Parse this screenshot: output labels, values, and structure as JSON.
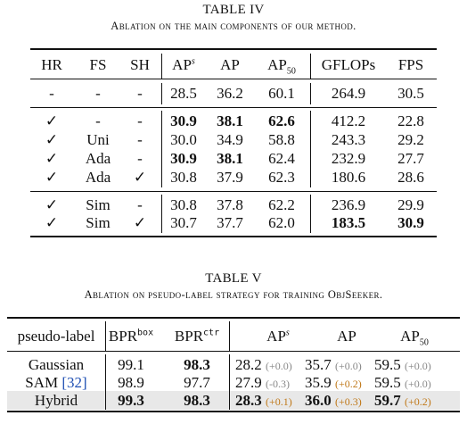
{
  "table4": {
    "label": "TABLE IV",
    "caption": "Ablation on the main components of our method.",
    "headers": {
      "hr": "HR",
      "fs": "FS",
      "sh": "SH",
      "aps": "AP",
      "aps_sup": "s",
      "ap": "AP",
      "ap50": "AP",
      "ap50_sub": "50",
      "gflops": "GFLOPs",
      "fps": "FPS"
    },
    "rows": [
      {
        "hr": "-",
        "fs": "-",
        "sh": "-",
        "aps": "28.5",
        "ap": "36.2",
        "ap50": "60.1",
        "gflops": "264.9",
        "fps": "30.5"
      },
      {
        "hr": "✓",
        "fs": "-",
        "sh": "-",
        "aps": "30.9",
        "ap": "38.1",
        "ap50": "62.6",
        "gflops": "412.2",
        "fps": "22.8"
      },
      {
        "hr": "✓",
        "fs": "Uni",
        "sh": "-",
        "aps": "30.0",
        "ap": "34.9",
        "ap50": "58.8",
        "gflops": "243.3",
        "fps": "29.2"
      },
      {
        "hr": "✓",
        "fs": "Ada",
        "sh": "-",
        "aps": "30.9",
        "ap": "38.1",
        "ap50": "62.4",
        "gflops": "232.9",
        "fps": "27.7"
      },
      {
        "hr": "✓",
        "fs": "Ada",
        "sh": "✓",
        "aps": "30.8",
        "ap": "37.9",
        "ap50": "62.3",
        "gflops": "180.6",
        "fps": "28.6"
      },
      {
        "hr": "✓",
        "fs": "Sim",
        "sh": "-",
        "aps": "30.8",
        "ap": "37.8",
        "ap50": "62.2",
        "gflops": "236.9",
        "fps": "29.9"
      },
      {
        "hr": "✓",
        "fs": "Sim",
        "sh": "✓",
        "aps": "30.7",
        "ap": "37.7",
        "ap50": "62.0",
        "gflops": "183.5",
        "fps": "30.9"
      }
    ]
  },
  "table5": {
    "label": "TABLE V",
    "caption": "Ablation on pseudo-label strategy for training ObjSeeker.",
    "headers": {
      "pseudo": "pseudo-label",
      "bprbox": "BPR",
      "bprbox_sup": "box",
      "bprctr": "BPR",
      "bprctr_sup": "ctr",
      "aps": "AP",
      "aps_sup": "s",
      "ap": "AP",
      "ap50": "AP",
      "ap50_sub": "50"
    },
    "rows": [
      {
        "name": "Gaussian",
        "ref": "",
        "bprbox": "99.1",
        "bprctr": "98.3",
        "aps": "28.2",
        "aps_d": "(+0.0)",
        "ap": "35.7",
        "ap_d": "(+0.0)",
        "ap50": "59.5",
        "ap50_d": "(+0.0)"
      },
      {
        "name": "SAM",
        "ref": "[32]",
        "bprbox": "98.9",
        "bprctr": "97.7",
        "aps": "27.9",
        "aps_d": "(-0.3)",
        "ap": "35.9",
        "ap_d": "(+0.2)",
        "ap50": "59.5",
        "ap50_d": "(+0.0)"
      },
      {
        "name": "Hybrid",
        "ref": "",
        "bprbox": "99.3",
        "bprctr": "98.3",
        "aps": "28.3",
        "aps_d": "(+0.1)",
        "ap": "36.0",
        "ap_d": "(+0.3)",
        "ap50": "59.7",
        "ap50_d": "(+0.2)"
      }
    ],
    "colors": {
      "gain": "#c07818",
      "neutral": "#888888",
      "highlight": "#e8e8e8",
      "ref": "#1f4fb3"
    }
  }
}
